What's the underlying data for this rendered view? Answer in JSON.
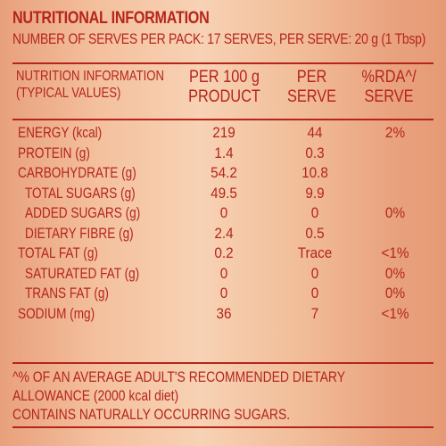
{
  "panel": {
    "title": "NUTRITIONAL INFORMATION",
    "serves_line": "NUMBER OF SERVES PER PACK: 17 SERVES, PER SERVE: 20 g (1 Tbsp)"
  },
  "table": {
    "header": {
      "col1_line1": "NUTRITION INFORMATION",
      "col1_line2": "(TYPICAL VALUES)",
      "col2_line1": "PER 100 g",
      "col2_line2": "PRODUCT",
      "col3_line1": "PER",
      "col3_line2": "SERVE",
      "col4_line1": "%RDA^/",
      "col4_line2": "SERVE"
    },
    "rows": [
      {
        "label": "ENERGY (kcal)",
        "per100": "219",
        "perserve": "44",
        "rda": "2%"
      },
      {
        "label": "PROTEIN (g)",
        "per100": "1.4",
        "perserve": "0.3",
        "rda": ""
      },
      {
        "label": "CARBOHYDRATE (g)",
        "per100": "54.2",
        "perserve": "10.8",
        "rda": ""
      },
      {
        "label": "TOTAL SUGARS (g)",
        "per100": "49.5",
        "perserve": "9.9",
        "rda": ""
      },
      {
        "label": "ADDED SUGARS (g)",
        "per100": "0",
        "perserve": "0",
        "rda": "0%"
      },
      {
        "label": "DIETARY FIBRE (g)",
        "per100": "2.4",
        "perserve": "0.5",
        "rda": ""
      },
      {
        "label": "TOTAL FAT (g)",
        "per100": "0.2",
        "perserve": "Trace",
        "rda": "<1%"
      },
      {
        "label": "SATURATED FAT (g)",
        "per100": "0",
        "perserve": "0",
        "rda": "0%"
      },
      {
        "label": "TRANS FAT (g)",
        "per100": "0",
        "perserve": "0",
        "rda": "0%"
      },
      {
        "label": "SODIUM (mg)",
        "per100": "36",
        "perserve": "7",
        "rda": "<1%"
      }
    ]
  },
  "footnotes": {
    "line1": "^% OF AN AVERAGE ADULT'S RECOMMENDED DIETARY",
    "line2": "ALLOWANCE (2000 kcal diet)",
    "line3": "CONTAINS NATURALLY OCCURRING SUGARS."
  },
  "colors": {
    "text": "#b5251c",
    "background_center": "#f7d2b4",
    "background_edge": "#e59a75"
  }
}
